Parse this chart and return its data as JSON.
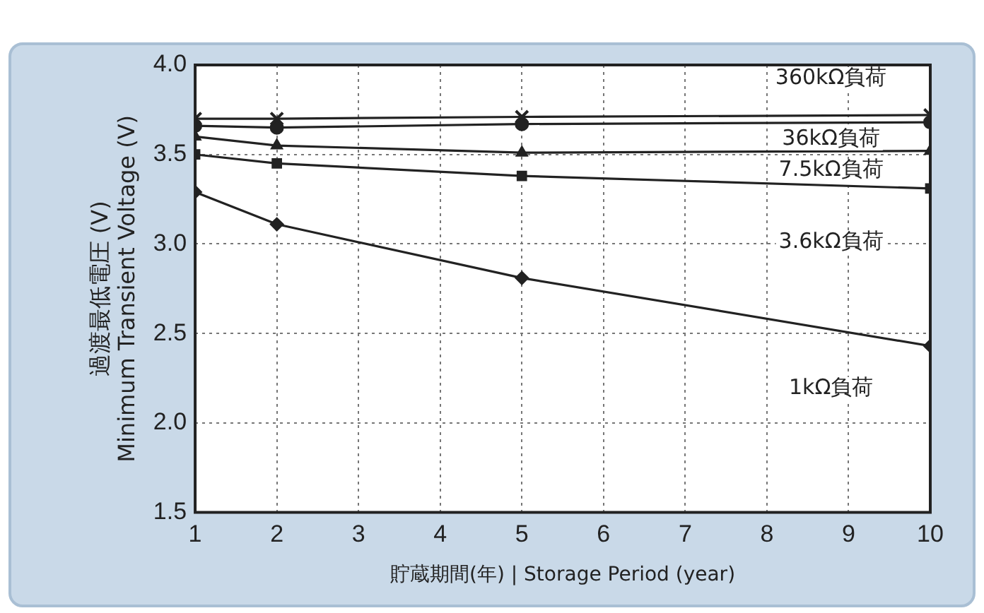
{
  "chart_data": {
    "type": "line",
    "xlabel": "貯蔵期間(年) | Storage Period (year)",
    "ylabel": "過渡最低電圧 (V)\nMinimum Transient Voltage (V)",
    "x": [
      1,
      2,
      5,
      10
    ],
    "xlim": [
      1,
      10
    ],
    "xticks": [
      1,
      2,
      3,
      4,
      5,
      6,
      7,
      8,
      9,
      10
    ],
    "ylim": [
      1.5,
      4.0
    ],
    "yticks": [
      {
        "value": 1.5,
        "label": "1.5"
      },
      {
        "value": 2.0,
        "label": "2.0"
      },
      {
        "value": 2.5,
        "label": "2.5"
      },
      {
        "value": 3.0,
        "label": "3.0"
      },
      {
        "value": 3.5,
        "label": "3.5"
      },
      {
        "value": 4.0,
        "label": "4.0"
      }
    ],
    "grid": true,
    "legend": false,
    "line_style": "solid",
    "series": [
      {
        "name": "360kΩ負荷",
        "color": "#222222",
        "marker": "cross",
        "values": [
          3.7,
          3.7,
          3.71,
          3.72
        ]
      },
      {
        "name": "36kΩ負荷",
        "color": "#222222",
        "marker": "circle",
        "values": [
          3.66,
          3.65,
          3.67,
          3.68
        ]
      },
      {
        "name": "7.5kΩ負荷",
        "color": "#222222",
        "marker": "triangle",
        "values": [
          3.6,
          3.55,
          3.51,
          3.52
        ]
      },
      {
        "name": "3.6kΩ負荷",
        "color": "#222222",
        "marker": "square",
        "values": [
          3.5,
          3.45,
          3.38,
          3.31
        ]
      },
      {
        "name": "1kΩ負荷",
        "color": "#222222",
        "marker": "diamond",
        "values": [
          3.29,
          3.11,
          2.81,
          2.43
        ]
      }
    ]
  }
}
